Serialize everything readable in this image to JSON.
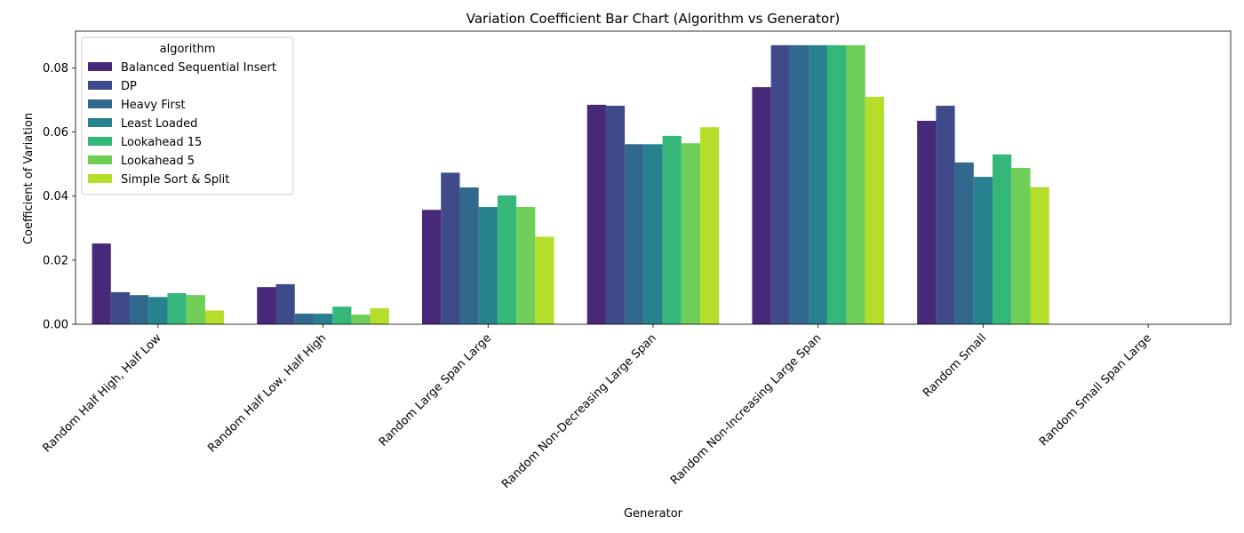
{
  "chart_data": {
    "type": "bar",
    "title": "Variation Coefficient Bar Chart (Algorithm vs Generator)",
    "xlabel": "Generator",
    "ylabel": "Coefficient of Variation",
    "ylim": [
      0,
      0.0915
    ],
    "yticks": [
      "0.00",
      "0.02",
      "0.04",
      "0.06",
      "0.08"
    ],
    "ytick_values": [
      0,
      0.02,
      0.04,
      0.06,
      0.08
    ],
    "grid": false,
    "legend": {
      "title": "algorithm",
      "placement": "top-left"
    },
    "categories": [
      "Random Half High, Half Low",
      "Random Half Low, Half High",
      "Random Large Span Large",
      "Random Non-Decreasing Large Span",
      "Random Non-Increasing Large Span",
      "Random Small",
      "Random Small Span Large"
    ],
    "series": [
      {
        "name": "Balanced Sequential Insert",
        "color": "#482878",
        "values": [
          0.0252,
          0.0116,
          0.0357,
          0.0685,
          0.074,
          0.0635,
          0.0
        ]
      },
      {
        "name": "DP",
        "color": "#3e4a89",
        "values": [
          0.01,
          0.0125,
          0.0473,
          0.0682,
          0.0871,
          0.0682,
          0.0
        ]
      },
      {
        "name": "Heavy First",
        "color": "#31688e",
        "values": [
          0.0091,
          0.0033,
          0.0427,
          0.0562,
          0.0871,
          0.0505,
          0.0
        ]
      },
      {
        "name": "Least Loaded",
        "color": "#26828e",
        "values": [
          0.0085,
          0.0033,
          0.0366,
          0.0562,
          0.0871,
          0.046,
          0.0
        ]
      },
      {
        "name": "Lookahead 15",
        "color": "#35b779",
        "values": [
          0.0097,
          0.0055,
          0.0402,
          0.0588,
          0.0871,
          0.053,
          0.0
        ]
      },
      {
        "name": "Lookahead 5",
        "color": "#6ece58",
        "values": [
          0.0091,
          0.003,
          0.0366,
          0.0565,
          0.0871,
          0.0488,
          0.0
        ]
      },
      {
        "name": "Simple Sort & Split",
        "color": "#b5de2b",
        "values": [
          0.0043,
          0.005,
          0.0273,
          0.0615,
          0.071,
          0.0428,
          0.0
        ]
      }
    ]
  }
}
